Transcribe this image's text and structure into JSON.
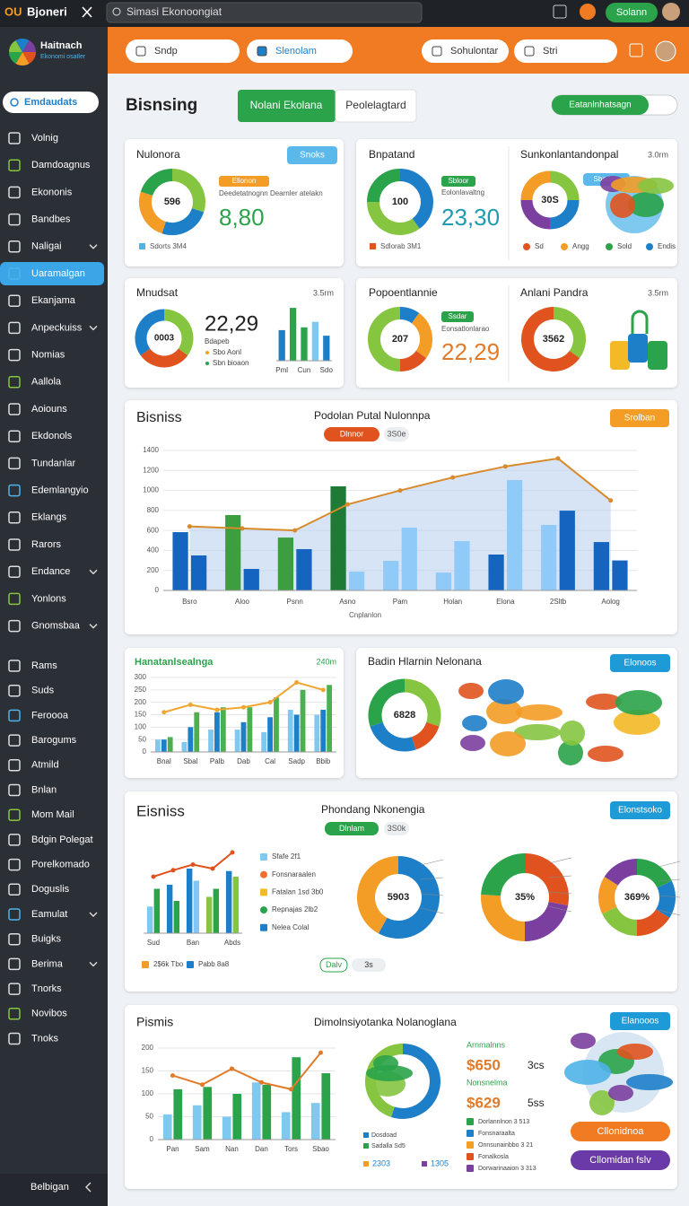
{
  "topbar": {
    "brand_mark": "OU",
    "brand": "Bjoneri",
    "search": "Simasi Ekonoongiat",
    "user": "Solann"
  },
  "sidebar": {
    "logo": "Haitnach",
    "logo_sub": "Ekonomi osatler",
    "button": "Emdaudats",
    "active": 5,
    "expandable": [
      4,
      7,
      16,
      18,
      29,
      31
    ],
    "items": [
      "Volnig",
      "Damdoagnus",
      "Ekononis",
      "Bandbes",
      "Naligai",
      "Uaramalgan",
      "Ekanjama",
      "Anpeckuiss",
      "Nomias",
      "Aallola",
      "Aoiouns",
      "Ekdonols",
      "Tundanlar",
      "Edemlangyio",
      "Eklangs",
      "Rarors",
      "Endance",
      "Yonlons",
      "Gnomsbaa",
      "Rams",
      "Suds",
      "Feroooa",
      "Barogums",
      "Atmild",
      "Bnlan",
      "Mom Mail",
      "Bdgin Polegat",
      "Porelkomado",
      "Doguslis",
      "Eamulat",
      "Buigks",
      "Berima",
      "Tnorks",
      "Novibos",
      "Tnoks"
    ],
    "footer": "Belbigan"
  },
  "header": {
    "chips": [
      "Sndp",
      "Slenolam",
      "Sohulontar",
      "Stri"
    ]
  },
  "page": {
    "title": "Bisnsing",
    "tabs": [
      "Nolani Ekolana",
      "Peolelagtard"
    ],
    "toggle": "Eatanlnhatsagn"
  },
  "card_a": {
    "title": "Nulonora",
    "button": "Snoks",
    "chip": "Ellonon",
    "text": "Deedetatnognn Dearnler atelakn",
    "big": "8,80",
    "legend": "Sdorts 3M4",
    "donut": {
      "center": "596",
      "values": [
        30,
        25,
        25,
        20
      ],
      "colors": [
        "#86c540",
        "#1e7fc9",
        "#f39c26",
        "#2aa34a"
      ]
    }
  },
  "card_b": {
    "title": "Bnpatand",
    "chip": "Sbloor",
    "text": "Eolonlavaltng",
    "big": "23,30",
    "legend": "Sdlorab 3M1",
    "donut": {
      "center": "100",
      "values": [
        40,
        35,
        25
      ],
      "colors": [
        "#1e7fc9",
        "#86c540",
        "#2aa34a"
      ]
    }
  },
  "card_b2": {
    "title": "Sunkonlantandonpal",
    "meta": "3.0rm",
    "button": "Sbadisn",
    "donut": {
      "center": "30S",
      "values": [
        25,
        25,
        25,
        25
      ],
      "colors": [
        "#86c540",
        "#1e7fc9",
        "#7b3fa0",
        "#f39c26"
      ]
    },
    "legend": [
      {
        "text": "Sd",
        "color": "#e0531f"
      },
      {
        "text": "Angg",
        "color": "#f39c26"
      },
      {
        "text": "Sold",
        "color": "#2aa34a"
      },
      {
        "text": "Endis",
        "color": "#1e7fc9"
      }
    ]
  },
  "card_c": {
    "title": "Mnudsat",
    "meta": "3.5rm",
    "big": "22,29",
    "notes": [
      "Bdapeb",
      "Sbo Aonl",
      "Sbn bioaon"
    ],
    "donut": {
      "center": "0003",
      "values": [
        35,
        30,
        35
      ],
      "colors": [
        "#86c540",
        "#e0531f",
        "#1e7fc9"
      ]
    },
    "bars": {
      "categories": [
        "Pml",
        null,
        "Cun",
        null,
        "Sdo"
      ],
      "ylim": [
        0,
        100
      ],
      "series": [
        {
          "colors": [
            "#1e7fc9",
            "#2aa34a",
            "#2aa34a",
            "#7fc8f0",
            "#1e7fc9"
          ],
          "values": [
            55,
            95,
            60,
            70,
            45
          ]
        }
      ]
    }
  },
  "card_d": {
    "title": "Popoentlannie",
    "chip": "Ssdar",
    "text": "Eonsatlonlarao",
    "big": "22,29",
    "donut": {
      "center": "207",
      "values": [
        10,
        25,
        15,
        50
      ],
      "colors": [
        "#1e7fc9",
        "#f39c26",
        "#e0531f",
        "#86c540"
      ]
    }
  },
  "card_d2": {
    "title": "Anlani Pandra",
    "meta": "3.5rm",
    "donut": {
      "center": "3562",
      "values": [
        35,
        65
      ],
      "colors": [
        "#86c540",
        "#e0531f"
      ]
    }
  },
  "trend": {
    "title": "Bisniss",
    "subtitle": "Podolan Putal Nulonnpa",
    "button": "Srolban",
    "pills": [
      "Dlnnor",
      "3S0e"
    ],
    "x_label": "Cnplanlon",
    "chart": {
      "categories": [
        "Bsro",
        "Aloo",
        "Psnn",
        "Asno",
        "Pam",
        "Holan",
        "Elona",
        "2Sltb",
        "Aolog"
      ],
      "ylim": [
        0,
        1400
      ],
      "yticks": [
        0,
        200,
        400,
        600,
        800,
        1000,
        1200,
        1400
      ],
      "series": [
        {
          "colors": [
            "#1565c0",
            "#3d9e3f",
            "#3d9e3f",
            "#1e7a34",
            "#90caf9",
            "#90caf9",
            "#1565c0",
            "#90caf9",
            "#1565c0"
          ],
          "values": [
            583,
            754,
            529,
            1041,
            296,
            179,
            359,
            655,
            484
          ]
        },
        {
          "colors": [
            "#1565c0",
            "#1565c0",
            "#1565c0",
            "#90caf9",
            "#90caf9",
            "#90caf9",
            "#90caf9",
            "#1565c0",
            "#1565c0"
          ],
          "values": [
            350,
            215,
            413,
            188,
            628,
            493,
            1104,
            798,
            300
          ]
        }
      ],
      "line": {
        "color": "#d98a2b",
        "area": true,
        "area_color": "#b7cdee",
        "values": [
          640,
          620,
          600,
          860,
          1000,
          1130,
          1240,
          1320,
          900
        ]
      }
    }
  },
  "card_e": {
    "title": "Hanatanlsealnga",
    "meta": "240m",
    "chart": {
      "categories": [
        "Bnal",
        "Sbal",
        "Palb",
        "Dab",
        "Cal",
        "Sadp",
        "Bbib"
      ],
      "ylim": [
        0,
        300
      ],
      "yticks": [
        0,
        50,
        100,
        150,
        200,
        250,
        300
      ],
      "series": [
        {
          "color": "#7fc8f0",
          "values": [
            50,
            40,
            90,
            90,
            80,
            170,
            150
          ]
        },
        {
          "color": "#1e7fc9",
          "values": [
            50,
            100,
            160,
            120,
            140,
            150,
            170
          ]
        },
        {
          "color": "#4caf50",
          "values": [
            60,
            160,
            180,
            180,
            220,
            250,
            270
          ]
        }
      ],
      "line": {
        "color": "#f0a630",
        "values": [
          160,
          190,
          170,
          180,
          200,
          280,
          250
        ]
      }
    }
  },
  "card_f": {
    "title": "Badin Hlarnin Nelonana",
    "button": "Elonoos",
    "donut": {
      "center": "6828",
      "values": [
        30,
        15,
        25,
        30
      ],
      "colors": [
        "#86c540",
        "#e0531f",
        "#1e7fc9",
        "#2aa34a"
      ]
    }
  },
  "mix": {
    "title": "Eisniss",
    "subtitle": "Phondang Nkonengia",
    "button": "Elonstsoko",
    "pills": [
      "Dlnlam",
      "3S0k"
    ],
    "chart": {
      "categories": [
        "Sud",
        null,
        "Ban",
        null,
        "Abds"
      ],
      "ylim": [
        0,
        100
      ],
      "series": [
        {
          "colors": [
            "#7fc8f0",
            "#1e7fc9",
            "#1e7fc9",
            "#86c540",
            "#1e7fc9"
          ],
          "values": [
            33,
            60,
            80,
            45,
            77
          ]
        },
        {
          "colors": [
            "#2aa34a",
            "#2aa34a",
            "#7fc8f0",
            "#2aa34a",
            "#86c540"
          ],
          "values": [
            55,
            40,
            65,
            55,
            70
          ]
        }
      ],
      "line": {
        "color": "#e0531f",
        "values": [
          70,
          78,
          85,
          80,
          100
        ]
      }
    },
    "legend": [
      {
        "text": "Sfafe 2f1",
        "color": "#7fc8f0"
      },
      {
        "text": "Fonsnaraalen",
        "color": "#f36d2c"
      },
      {
        "text": "Fatalan 1sd 3b0",
        "color": "#f3b926"
      },
      {
        "text": "Repnajas 2lb2",
        "color": "#2aa34a"
      },
      {
        "text": "Nelea Colal",
        "color": "#1e7fc9"
      }
    ],
    "bottom_legend": [
      {
        "text": "2$6k Tbo",
        "color": "#f39c26"
      },
      {
        "text": "Pabb 8a8",
        "color": "#1e7fc9"
      }
    ],
    "bottom_pills": [
      "Dalv",
      "3s"
    ],
    "donuts": [
      {
        "center": "5903",
        "values": [
          58,
          42
        ],
        "colors": [
          "#1e7fc9",
          "#f39c26"
        ]
      },
      {
        "center": "35%",
        "values": [
          28,
          22,
          26,
          24
        ],
        "colors": [
          "#e0531f",
          "#7b3fa0",
          "#f39c26",
          "#2aa34a"
        ]
      },
      {
        "center": "369%",
        "values": [
          18,
          16,
          16,
          18,
          16,
          16
        ],
        "colors": [
          "#2aa34a",
          "#1e7fc9",
          "#e0531f",
          "#86c540",
          "#f39c26",
          "#7b3fa0"
        ]
      }
    ]
  },
  "summary": {
    "title": "Pismis",
    "subtitle": "Dimolnsiyotanka Nolanoglana",
    "button": "Elanooos",
    "chart": {
      "categories": [
        "Pan",
        "Sam",
        "Nan",
        "Dan",
        "Tors",
        "Sbao"
      ],
      "ylim": [
        0,
        200
      ],
      "yticks": [
        0,
        50,
        100,
        150,
        200
      ],
      "series": [
        {
          "color": "#7fc8f0",
          "values": [
            55,
            75,
            50,
            125,
            60,
            80
          ]
        },
        {
          "color": "#2aa34a",
          "values": [
            110,
            115,
            100,
            120,
            180,
            145
          ]
        }
      ],
      "line": {
        "color": "#e07b2b",
        "values": [
          140,
          120,
          155,
          125,
          110,
          190
        ]
      }
    },
    "donut": {
      "values": [
        55,
        45
      ],
      "colors": [
        "#1e7fc9",
        "#86c540"
      ]
    },
    "donut_legend": [
      "Dosdoad",
      "Sadalla Sd5"
    ],
    "donut_footer": [
      "2303",
      "1305"
    ],
    "stats": [
      {
        "label": "Arnmalnns",
        "value": "$650",
        "unit": "3cs"
      },
      {
        "label": "Nonsnelma",
        "value": "$629",
        "unit": "5ss"
      }
    ],
    "legend": [
      {
        "text": "Dorlannlnon 3 513",
        "color": "#2aa34a"
      },
      {
        "text": "Fonsnaraalta",
        "color": "#1e7fc9"
      },
      {
        "text": "Onnsunainbbo 3 21",
        "color": "#f39c26"
      },
      {
        "text": "Fonalkosla",
        "color": "#e0531f"
      },
      {
        "text": "Dorwarinaaion 3 313",
        "color": "#7b3fa0"
      }
    ],
    "actions": [
      "Cllonidnoa",
      "Cllomidan fslv"
    ]
  }
}
